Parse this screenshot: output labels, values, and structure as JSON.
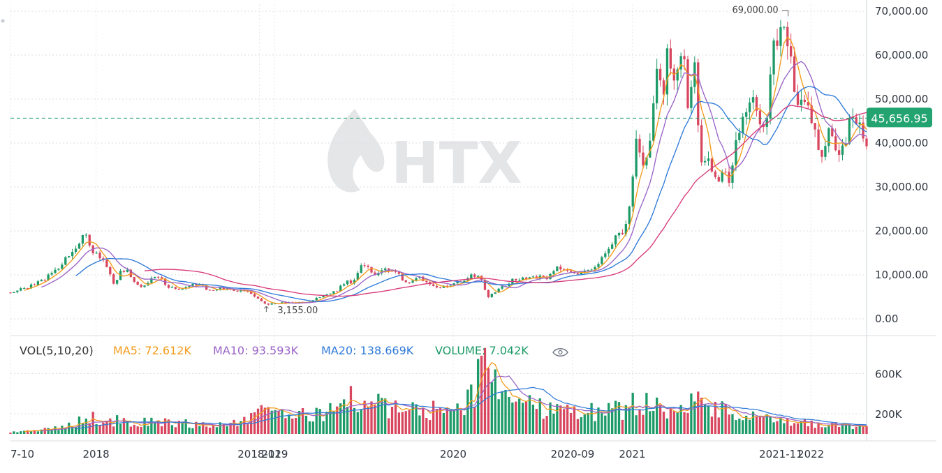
{
  "chart_data": [
    {
      "type": "candlestick",
      "title": "",
      "watermark": "HTX",
      "ylim": [
        0,
        70000
      ],
      "y_ticks": [
        "70,000.00",
        "60,000.00",
        "50,000.00",
        "40,000.00",
        "30,000.00",
        "20,000.00",
        "10,000.00",
        "0.00"
      ],
      "x_tick_labels": [
        "7-10",
        "2018",
        "2018-12",
        "2019",
        "2020",
        "2020-09",
        "2021",
        "2021-11",
        "2022"
      ],
      "x_start": "2017-07-10",
      "x_end": "2022-04-25",
      "x_tick_dates": [
        "2017-07-10",
        "2018-01-01",
        "2018-12-01",
        "2019-01-01",
        "2020-01-01",
        "2020-09-01",
        "2021-01-01",
        "2021-11-01",
        "2022-01-01"
      ],
      "current_price": 45656.95,
      "current_price_label": "45,656.95",
      "annotations": [
        {
          "label": "69,000.00",
          "date": "2021-11-10",
          "value": 69000
        },
        {
          "label": "3,155.00",
          "date": "2018-12-15",
          "value": 3155
        }
      ],
      "price_path": [
        [
          "2017-07-10",
          6000
        ],
        [
          "2017-08-10",
          7000
        ],
        [
          "2017-09-10",
          8500
        ],
        [
          "2017-10-10",
          11000
        ],
        [
          "2017-11-10",
          15000
        ],
        [
          "2017-12-10",
          19000
        ],
        [
          "2017-12-25",
          15500
        ],
        [
          "2018-01-10",
          14000
        ],
        [
          "2018-01-25",
          11500
        ],
        [
          "2018-02-06",
          8000
        ],
        [
          "2018-02-20",
          10500
        ],
        [
          "2018-03-05",
          11000
        ],
        [
          "2018-03-20",
          8500
        ],
        [
          "2018-04-05",
          7000
        ],
        [
          "2018-04-25",
          9000
        ],
        [
          "2018-05-10",
          9500
        ],
        [
          "2018-05-25",
          7500
        ],
        [
          "2018-06-20",
          6500
        ],
        [
          "2018-07-15",
          7500
        ],
        [
          "2018-07-30",
          8200
        ],
        [
          "2018-08-15",
          6500
        ],
        [
          "2018-09-10",
          6800
        ],
        [
          "2018-10-10",
          6500
        ],
        [
          "2018-11-05",
          6400
        ],
        [
          "2018-11-20",
          5000
        ],
        [
          "2018-12-15",
          3300
        ],
        [
          "2019-01-10",
          3600
        ],
        [
          "2019-02-10",
          3600
        ],
        [
          "2019-03-10",
          3900
        ],
        [
          "2019-04-10",
          5200
        ],
        [
          "2019-05-10",
          6500
        ],
        [
          "2019-05-25",
          8500
        ],
        [
          "2019-06-10",
          8300
        ],
        [
          "2019-06-26",
          12500
        ],
        [
          "2019-07-10",
          12000
        ],
        [
          "2019-07-25",
          9800
        ],
        [
          "2019-08-10",
          11500
        ],
        [
          "2019-09-10",
          10300
        ],
        [
          "2019-09-25",
          8300
        ],
        [
          "2019-10-25",
          9300
        ],
        [
          "2019-11-25",
          7200
        ],
        [
          "2019-12-20",
          7200
        ],
        [
          "2020-01-20",
          8700
        ],
        [
          "2020-02-10",
          10200
        ],
        [
          "2020-02-25",
          9200
        ],
        [
          "2020-03-13",
          5000
        ],
        [
          "2020-04-05",
          6800
        ],
        [
          "2020-05-05",
          9000
        ],
        [
          "2020-06-10",
          9600
        ],
        [
          "2020-07-10",
          9300
        ],
        [
          "2020-08-01",
          11500
        ],
        [
          "2020-09-05",
          10200
        ],
        [
          "2020-10-10",
          11300
        ],
        [
          "2020-10-25",
          13000
        ],
        [
          "2020-11-10",
          15500
        ],
        [
          "2020-11-25",
          18500
        ],
        [
          "2020-12-10",
          19000
        ],
        [
          "2020-12-25",
          24500
        ],
        [
          "2021-01-08",
          40000
        ],
        [
          "2021-01-25",
          33000
        ],
        [
          "2021-02-10",
          44000
        ],
        [
          "2021-02-21",
          57000
        ],
        [
          "2021-03-05",
          49000
        ],
        [
          "2021-03-13",
          60000
        ],
        [
          "2021-03-25",
          53000
        ],
        [
          "2021-04-14",
          63500
        ],
        [
          "2021-04-25",
          49000
        ],
        [
          "2021-05-10",
          58000
        ],
        [
          "2021-05-19",
          36000
        ],
        [
          "2021-06-01",
          36500
        ],
        [
          "2021-06-22",
          31000
        ],
        [
          "2021-07-05",
          34000
        ],
        [
          "2021-07-20",
          29800
        ],
        [
          "2021-08-01",
          40000
        ],
        [
          "2021-08-20",
          48000
        ],
        [
          "2021-09-07",
          52000
        ],
        [
          "2021-09-22",
          40500
        ],
        [
          "2021-10-05",
          48000
        ],
        [
          "2021-10-20",
          64000
        ],
        [
          "2021-11-10",
          67500
        ],
        [
          "2021-11-25",
          57000
        ],
        [
          "2021-12-04",
          47000
        ],
        [
          "2021-12-25",
          50000
        ],
        [
          "2022-01-10",
          42000
        ],
        [
          "2022-01-24",
          36000
        ],
        [
          "2022-02-10",
          44000
        ],
        [
          "2022-02-25",
          38000
        ],
        [
          "2022-03-10",
          39000
        ],
        [
          "2022-03-28",
          47000
        ],
        [
          "2022-04-10",
          43000
        ],
        [
          "2022-04-25",
          40000
        ]
      ],
      "ma_note": "moving average lines over candles"
    },
    {
      "type": "bar",
      "title": "",
      "legend": {
        "prefix": "VOL(5,10,20)",
        "ma5": "MA5: 72.612K",
        "ma10": "MA10: 93.593K",
        "ma20": "MA20: 138.669K",
        "volume": "VOLUME: 7.042K"
      },
      "ylim": [
        0,
        900000
      ],
      "y_ticks": [
        "600K",
        "200K"
      ],
      "volume_path": [
        [
          "2017-07-10",
          20000
        ],
        [
          "2017-09-10",
          40000
        ],
        [
          "2017-11-10",
          80000
        ],
        [
          "2017-12-15",
          160000
        ],
        [
          "2018-01-15",
          150000
        ],
        [
          "2018-03-10",
          110000
        ],
        [
          "2018-05-10",
          120000
        ],
        [
          "2018-07-10",
          100000
        ],
        [
          "2018-09-10",
          90000
        ],
        [
          "2018-11-20",
          150000
        ],
        [
          "2018-12-15",
          260000
        ],
        [
          "2019-01-20",
          220000
        ],
        [
          "2019-03-10",
          170000
        ],
        [
          "2019-04-10",
          220000
        ],
        [
          "2019-05-20",
          300000
        ],
        [
          "2019-06-26",
          380000
        ],
        [
          "2019-08-10",
          260000
        ],
        [
          "2019-10-10",
          230000
        ],
        [
          "2019-12-10",
          240000
        ],
        [
          "2020-01-20",
          260000
        ],
        [
          "2020-03-13",
          700000
        ],
        [
          "2020-04-15",
          420000
        ],
        [
          "2020-06-10",
          270000
        ],
        [
          "2020-08-10",
          270000
        ],
        [
          "2020-10-10",
          220000
        ],
        [
          "2020-12-10",
          240000
        ],
        [
          "2021-01-10",
          320000
        ],
        [
          "2021-02-20",
          300000
        ],
        [
          "2021-04-15",
          240000
        ],
        [
          "2021-05-19",
          330000
        ],
        [
          "2021-07-10",
          210000
        ],
        [
          "2021-09-10",
          160000
        ],
        [
          "2021-11-10",
          110000
        ],
        [
          "2022-01-10",
          100000
        ],
        [
          "2022-03-10",
          80000
        ],
        [
          "2022-04-25",
          60000
        ]
      ]
    }
  ]
}
